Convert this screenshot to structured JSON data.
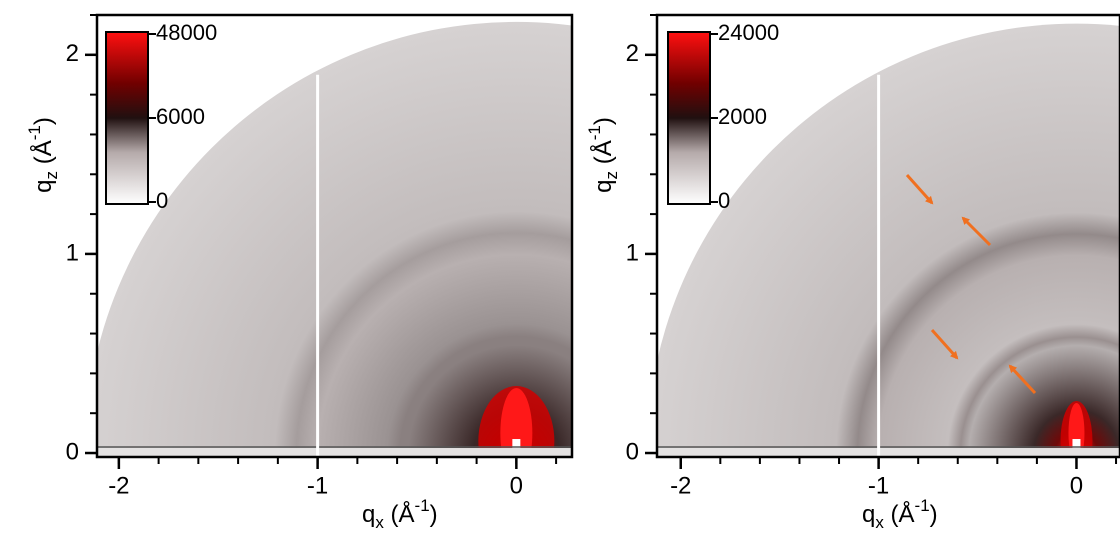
{
  "chart_data": [
    {
      "type": "image",
      "xlabel": [
        "q",
        "x",
        " (Å",
        "-1",
        ")"
      ],
      "ylabel": [
        "q",
        "z",
        " (Å",
        "-1",
        ")"
      ],
      "xlim": [
        -2.11,
        0.28
      ],
      "ylim": [
        -0.02,
        2.2
      ],
      "xticks": [
        -2,
        -1,
        0
      ],
      "yticks": [
        0,
        1,
        2
      ],
      "xminorticks": [
        -2,
        -1.8,
        -1.6,
        -1.4,
        -1.2,
        -1,
        -0.8,
        -0.6,
        -0.4,
        -0.2,
        0,
        0.2
      ],
      "yminorticks": [
        0,
        0.2,
        0.4,
        0.6,
        0.8,
        1,
        1.2,
        1.4,
        1.6,
        1.8,
        2,
        2.2
      ],
      "colorbar_ticks": [
        0,
        6000,
        48000
      ],
      "vline": -1
    },
    {
      "type": "image",
      "xlabel": [
        "q",
        "x",
        " (Å",
        "-1",
        ")"
      ],
      "ylabel": [
        "q",
        "z",
        " (Å",
        "-1",
        ")"
      ],
      "xlim": [
        -2.12,
        0.22
      ],
      "ylim": [
        -0.02,
        2.2
      ],
      "xticks": [
        -2,
        -1,
        0
      ],
      "yticks": [
        0,
        1,
        2
      ],
      "xminorticks": [
        -2,
        -1.8,
        -1.6,
        -1.4,
        -1.2,
        -1,
        -0.8,
        -0.6,
        -0.4,
        -0.2,
        0,
        0.2
      ],
      "yminorticks": [
        0,
        0.2,
        0.4,
        0.6,
        0.8,
        1,
        1.2,
        1.4,
        1.6,
        1.8,
        2,
        2.2
      ],
      "colorbar_ticks": [
        0,
        2000,
        24000
      ],
      "vline": -1
    }
  ]
}
